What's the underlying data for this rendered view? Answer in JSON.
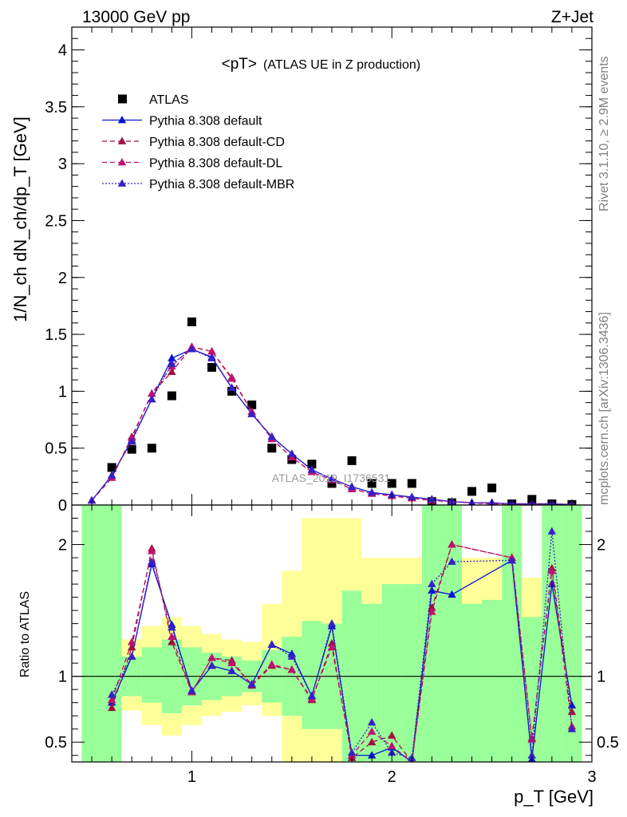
{
  "header": {
    "left": "13000 GeV pp",
    "right": "Z+Jet"
  },
  "side_labels": {
    "rivet": "Rivet 3.1.10, ≥ 2.9M events",
    "mcplots": "mcplots.cern.ch [arXiv:1306.3436]"
  },
  "watermark": "ATLAS_2019_I1736531",
  "chart_data": [
    {
      "type": "scatter",
      "title": "<pT> (ATLAS UE in Z production)",
      "title_main": "<pT>",
      "title_sub": "(ATLAS UE in Z production)",
      "ylabel": "1/N_ch dN_ch/dp_T [GeV]",
      "xlim": [
        0.4,
        3.0
      ],
      "ylim": [
        0,
        4.2
      ],
      "y_ticks": [
        "0",
        "0.5",
        "1",
        "1.5",
        "2",
        "2.5",
        "3",
        "3.5",
        "4"
      ],
      "y_tick_values": [
        0,
        0.5,
        1,
        1.5,
        2,
        2.5,
        3,
        3.5,
        4
      ],
      "legend_position": "top-left",
      "x": [
        0.5,
        0.6,
        0.7,
        0.8,
        0.9,
        1.0,
        1.1,
        1.2,
        1.3,
        1.4,
        1.5,
        1.6,
        1.7,
        1.8,
        1.9,
        2.0,
        2.1,
        2.2,
        2.3,
        2.4,
        2.5,
        2.6,
        2.7,
        2.8,
        2.9
      ],
      "series": [
        {
          "name": "ATLAS",
          "color": "#000000",
          "marker": "square",
          "line": "none",
          "values": [
            0.0,
            0.33,
            0.49,
            0.5,
            0.96,
            1.61,
            1.21,
            1.0,
            0.88,
            0.5,
            0.4,
            0.36,
            0.19,
            0.39,
            0.19,
            0.19,
            0.19,
            0.03,
            0.02,
            0.12,
            0.15,
            0.01,
            0.05,
            0.01,
            0.005
          ]
        },
        {
          "name": "Pythia 8.308 default",
          "color": "#0a14d2",
          "marker": "triangle",
          "line": "solid",
          "values": [
            0.04,
            0.26,
            0.57,
            0.93,
            1.29,
            1.37,
            1.3,
            1.03,
            0.8,
            0.6,
            0.45,
            0.31,
            0.23,
            0.16,
            0.11,
            0.09,
            0.07,
            0.05,
            0.03,
            0.02,
            0.02,
            0.01,
            0.01,
            0.01,
            0.005
          ]
        },
        {
          "name": "Pythia 8.308 default-CD",
          "color": "#a01040",
          "marker": "triangle",
          "line": "dashed",
          "values": [
            0.04,
            0.24,
            0.6,
            0.98,
            1.17,
            1.39,
            1.35,
            1.12,
            0.82,
            0.58,
            0.42,
            0.29,
            0.22,
            0.14,
            0.1,
            0.08,
            0.06,
            0.04,
            0.03,
            0.02,
            0.01,
            0.01,
            0.01,
            0.01,
            0.005
          ]
        },
        {
          "name": "Pythia 8.308 default-DL",
          "color": "#c01070",
          "marker": "triangle",
          "line": "dashed",
          "values": [
            0.04,
            0.24,
            0.59,
            0.98,
            1.22,
            1.39,
            1.35,
            1.11,
            0.82,
            0.58,
            0.42,
            0.29,
            0.22,
            0.14,
            0.1,
            0.08,
            0.06,
            0.04,
            0.03,
            0.02,
            0.01,
            0.01,
            0.01,
            0.01,
            0.005
          ]
        },
        {
          "name": "Pythia 8.308 default-MBR",
          "color": "#3820c8",
          "marker": "triangle",
          "line": "dotted",
          "values": [
            0.04,
            0.26,
            0.56,
            0.93,
            1.24,
            1.37,
            1.29,
            1.03,
            0.8,
            0.6,
            0.45,
            0.31,
            0.23,
            0.16,
            0.11,
            0.09,
            0.07,
            0.05,
            0.03,
            0.02,
            0.02,
            0.01,
            0.01,
            0.01,
            0.005
          ]
        }
      ]
    },
    {
      "type": "scatter",
      "ylabel": "Ratio to ATLAS",
      "xlabel": "p_T [GeV]",
      "xlim": [
        0.4,
        3.0
      ],
      "ylim": [
        0.35,
        2.3
      ],
      "x_ticks": [
        "1",
        "2",
        "3"
      ],
      "x_tick_values": [
        1,
        2,
        3
      ],
      "y_ticks": [
        "0.5",
        "1",
        "2"
      ],
      "y_tick_values": [
        0.5,
        1,
        2
      ],
      "reference_line": 1,
      "uncertainty_bands": {
        "bin_edges": [
          0.45,
          0.55,
          0.65,
          0.75,
          0.85,
          0.95,
          1.05,
          1.15,
          1.25,
          1.35,
          1.45,
          1.55,
          1.65,
          1.75,
          1.85,
          1.95,
          2.05,
          2.15,
          2.25,
          2.35,
          2.45,
          2.55,
          2.65,
          2.75,
          2.85,
          2.95
        ],
        "inner_color": "#99ff99",
        "outer_color": "#ffff99",
        "inner_low": [
          0.35,
          0.35,
          0.85,
          0.8,
          0.72,
          0.78,
          0.82,
          0.85,
          0.88,
          0.8,
          0.7,
          0.6,
          0.6,
          0.35,
          0.35,
          0.35,
          0.35,
          0.35,
          0.35,
          0.35,
          0.35,
          0.35,
          0.35,
          0.35,
          0.35
        ],
        "inner_high": [
          2.3,
          2.3,
          1.15,
          1.22,
          1.28,
          1.22,
          1.18,
          1.15,
          1.12,
          1.2,
          1.3,
          1.42,
          1.4,
          1.65,
          1.55,
          1.7,
          1.7,
          2.3,
          2.3,
          1.55,
          1.58,
          2.3,
          1.45,
          2.3,
          2.3
        ],
        "outer_low": [
          0.35,
          0.58,
          0.74,
          0.63,
          0.55,
          0.63,
          0.7,
          0.73,
          0.78,
          0.7,
          0.35,
          0.35,
          0.35,
          0.35,
          0.35,
          0.35,
          0.35,
          0.35,
          0.35,
          0.35,
          0.35,
          0.35,
          0.35,
          0.35,
          0.35
        ],
        "outer_high": [
          2.3,
          2.3,
          1.28,
          1.38,
          1.45,
          1.38,
          1.32,
          1.28,
          1.26,
          1.55,
          1.8,
          2.2,
          2.2,
          2.2,
          1.9,
          1.9,
          1.9,
          2.3,
          2.3,
          1.9,
          1.9,
          2.3,
          1.75,
          2.3,
          2.3
        ]
      },
      "x": [
        0.6,
        0.7,
        0.8,
        0.9,
        1.0,
        1.1,
        1.2,
        1.3,
        1.4,
        1.5,
        1.6,
        1.7,
        1.8,
        1.9,
        2.0,
        2.1,
        2.2,
        2.3,
        2.6,
        2.7,
        2.8,
        2.9
      ],
      "series": [
        {
          "name": "Pythia 8.308 default",
          "color": "#0a14d2",
          "line": "solid",
          "values": [
            0.8,
            1.15,
            1.85,
            1.39,
            0.89,
            1.08,
            1.04,
            0.94,
            1.24,
            1.17,
            0.85,
            1.38,
            0.4,
            0.4,
            0.46,
            0.35,
            1.65,
            1.62,
            1.88,
            0.37,
            1.7,
            0.78
          ]
        },
        {
          "name": "Pythia 8.308 default-CD",
          "color": "#a01040",
          "line": "dashed",
          "values": [
            0.76,
            1.22,
            1.97,
            1.26,
            0.88,
            1.14,
            1.12,
            0.93,
            1.08,
            1.05,
            0.82,
            1.25,
            0.38,
            0.5,
            0.55,
            0.35,
            1.52,
            2.0,
            1.9,
            0.53,
            1.82,
            0.73
          ]
        },
        {
          "name": "Pythia 8.308 default-DL",
          "color": "#c01070",
          "line": "dashed",
          "values": [
            0.82,
            1.26,
            1.95,
            1.3,
            0.88,
            1.14,
            1.1,
            0.94,
            1.09,
            1.05,
            0.83,
            1.22,
            0.4,
            0.58,
            0.47,
            0.35,
            1.49,
            2.0,
            1.9,
            0.52,
            1.8,
            0.62
          ]
        },
        {
          "name": "Pythia 8.308 default-MBR",
          "color": "#3820c8",
          "line": "dotted",
          "values": [
            0.86,
            1.15,
            1.87,
            1.37,
            0.89,
            1.08,
            1.04,
            0.94,
            1.24,
            1.15,
            0.85,
            1.4,
            0.42,
            0.65,
            0.42,
            0.38,
            1.7,
            1.87,
            1.88,
            0.4,
            2.1,
            0.6
          ]
        }
      ]
    }
  ]
}
